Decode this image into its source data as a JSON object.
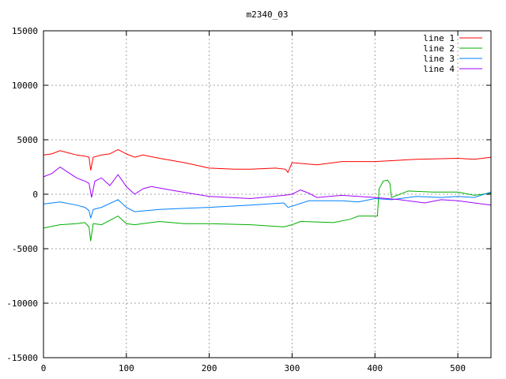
{
  "chart_data": {
    "type": "line",
    "title": "m2340_03",
    "xlabel": "",
    "ylabel": "",
    "xlim": [
      0,
      540
    ],
    "ylim": [
      -15000,
      15000
    ],
    "xticks": [
      0,
      100,
      200,
      300,
      400,
      500
    ],
    "yticks": [
      -15000,
      -10000,
      -5000,
      0,
      5000,
      10000,
      15000
    ],
    "grid": true,
    "legend_position": "top-right",
    "series": [
      {
        "name": "line 1",
        "color": "#ff0000",
        "x": [
          0,
          10,
          20,
          30,
          40,
          50,
          55,
          57,
          60,
          70,
          80,
          90,
          100,
          110,
          120,
          140,
          170,
          200,
          230,
          250,
          280,
          292,
          295,
          300,
          330,
          360,
          400,
          450,
          500,
          520,
          540
        ],
        "y": [
          3600,
          3700,
          4000,
          3800,
          3600,
          3500,
          3400,
          2200,
          3400,
          3600,
          3700,
          4100,
          3700,
          3400,
          3600,
          3300,
          2900,
          2400,
          2300,
          2300,
          2400,
          2300,
          2000,
          2900,
          2700,
          3000,
          3000,
          3200,
          3300,
          3200,
          3400
        ]
      },
      {
        "name": "line 2",
        "color": "#00b000",
        "x": [
          0,
          20,
          40,
          50,
          55,
          57,
          60,
          70,
          90,
          100,
          110,
          140,
          170,
          200,
          250,
          290,
          300,
          310,
          350,
          370,
          380,
          400,
          403,
          405,
          410,
          415,
          418,
          420,
          440,
          470,
          500,
          520,
          540
        ],
        "y": [
          -3100,
          -2800,
          -2700,
          -2600,
          -3000,
          -4300,
          -2700,
          -2800,
          -2000,
          -2700,
          -2800,
          -2500,
          -2700,
          -2700,
          -2800,
          -3000,
          -2800,
          -2500,
          -2600,
          -2300,
          -2000,
          -2000,
          -2000,
          500,
          1200,
          1300,
          1000,
          -300,
          300,
          200,
          200,
          -100,
          100
        ]
      },
      {
        "name": "line 3",
        "color": "#0080ff",
        "x": [
          0,
          20,
          40,
          50,
          55,
          57,
          60,
          70,
          90,
          100,
          110,
          140,
          170,
          200,
          250,
          290,
          295,
          300,
          320,
          360,
          380,
          400,
          420,
          450,
          480,
          500,
          520,
          540
        ],
        "y": [
          -900,
          -700,
          -1000,
          -1200,
          -1500,
          -2200,
          -1400,
          -1200,
          -500,
          -1200,
          -1600,
          -1400,
          -1300,
          -1200,
          -1000,
          -800,
          -1200,
          -1100,
          -600,
          -600,
          -700,
          -400,
          -500,
          -200,
          -300,
          -200,
          -300,
          200
        ]
      },
      {
        "name": "line 4",
        "color": "#a000ff",
        "x": [
          0,
          10,
          20,
          30,
          40,
          50,
          55,
          58,
          62,
          70,
          80,
          90,
          100,
          110,
          120,
          130,
          160,
          200,
          250,
          290,
          300,
          310,
          320,
          330,
          360,
          400,
          430,
          460,
          480,
          500,
          520,
          540
        ],
        "y": [
          1600,
          1900,
          2500,
          2000,
          1500,
          1200,
          1000,
          -300,
          1200,
          1500,
          800,
          1800,
          700,
          0,
          500,
          700,
          300,
          -200,
          -400,
          -100,
          0,
          400,
          100,
          -300,
          -100,
          -300,
          -500,
          -800,
          -500,
          -600,
          -800,
          -1000
        ]
      }
    ]
  }
}
